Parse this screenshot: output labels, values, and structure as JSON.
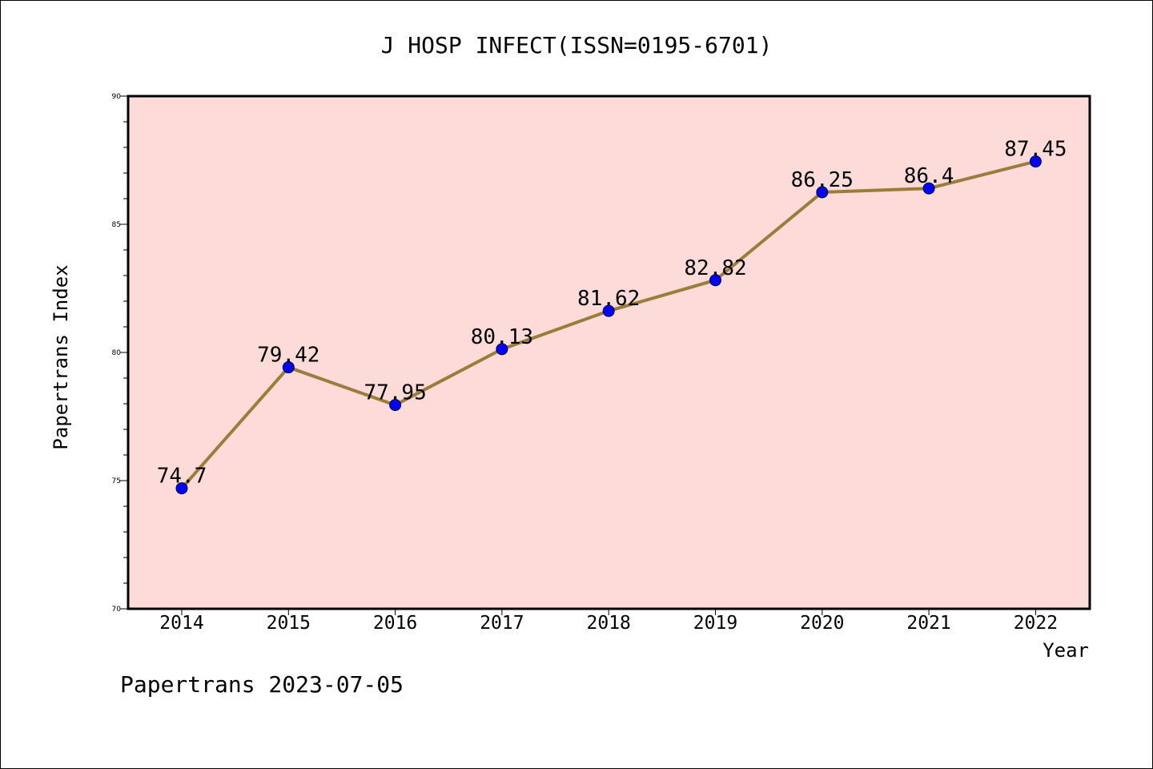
{
  "chart_data": {
    "type": "line",
    "title": "J HOSP INFECT(ISSN=0195-6701)",
    "xlabel": "Year",
    "ylabel": "Papertrans Index",
    "categories": [
      "2014",
      "2015",
      "2016",
      "2017",
      "2018",
      "2019",
      "2020",
      "2021",
      "2022"
    ],
    "series": [
      {
        "values": [
          74.7,
          79.42,
          77.95,
          80.13,
          81.62,
          82.82,
          86.25,
          86.4,
          87.45
        ],
        "labels": [
          "74.7",
          "79.42",
          "77.95",
          "80.13",
          "81.62",
          "82.82",
          "86.25",
          "86.4",
          "87.45"
        ]
      }
    ],
    "ylim": [
      70,
      90
    ],
    "yticks": [
      "70",
      "75",
      "80",
      "85",
      "90"
    ],
    "grid": false,
    "colors": {
      "plot_background": "#fddbd8",
      "line": "#9b7d3a",
      "marker": "#0000ff"
    }
  },
  "footer": "Papertrans 2023-07-05"
}
